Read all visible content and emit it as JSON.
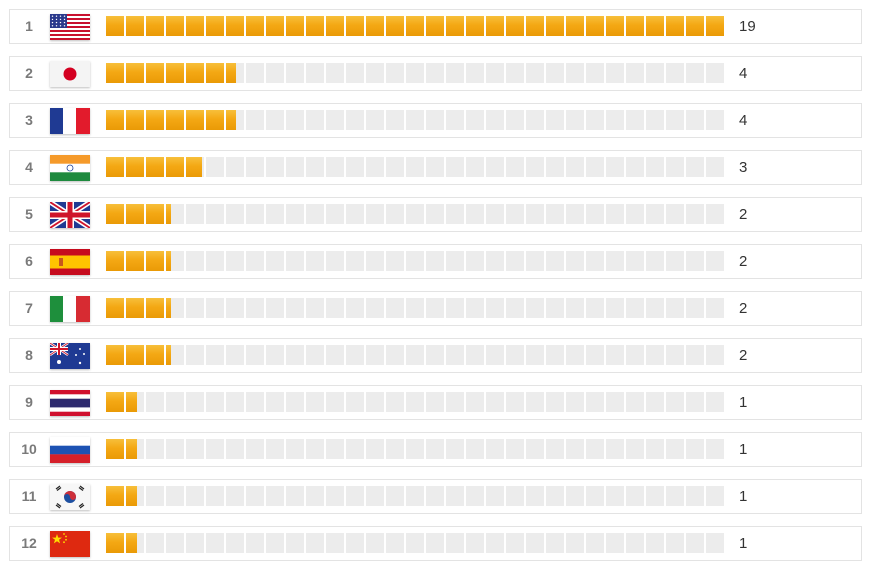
{
  "scale_max": 19,
  "colors": {
    "bar_fill": "#f4a814",
    "bar_empty": "#ececec",
    "rank_text": "#7a7a7a",
    "count_text": "#333333",
    "row_border": "#e3e3e3"
  },
  "rows": [
    {
      "rank": "1",
      "flag": "us-flag-icon",
      "value": 19,
      "count": "19"
    },
    {
      "rank": "2",
      "flag": "japan-flag-icon",
      "value": 4,
      "count": "4"
    },
    {
      "rank": "3",
      "flag": "france-flag-icon",
      "value": 4,
      "count": "4"
    },
    {
      "rank": "4",
      "flag": "india-flag-icon",
      "value": 3,
      "count": "3"
    },
    {
      "rank": "5",
      "flag": "uk-flag-icon",
      "value": 2,
      "count": "2"
    },
    {
      "rank": "6",
      "flag": "spain-flag-icon",
      "value": 2,
      "count": "2"
    },
    {
      "rank": "7",
      "flag": "italy-flag-icon",
      "value": 2,
      "count": "2"
    },
    {
      "rank": "8",
      "flag": "australia-flag-icon",
      "value": 2,
      "count": "2"
    },
    {
      "rank": "9",
      "flag": "thailand-flag-icon",
      "value": 1,
      "count": "1"
    },
    {
      "rank": "10",
      "flag": "russia-flag-icon",
      "value": 1,
      "count": "1"
    },
    {
      "rank": "11",
      "flag": "south-korea-flag-icon",
      "value": 1,
      "count": "1"
    },
    {
      "rank": "12",
      "flag": "china-flag-icon",
      "value": 1,
      "count": "1"
    }
  ]
}
